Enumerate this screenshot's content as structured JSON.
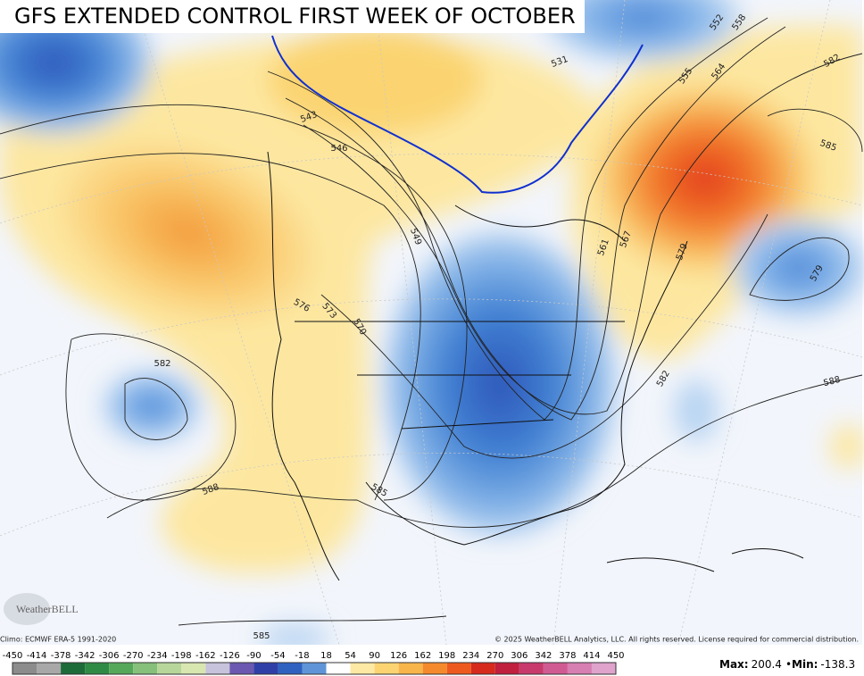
{
  "title": "GFS EXTENDED CONTROL FIRST WEEK OF OCTOBER",
  "contour_labels": [
    "531",
    "552",
    "558",
    "555",
    "564",
    "582",
    "585",
    "543",
    "546",
    "549",
    "561",
    "567",
    "579",
    "579",
    "576",
    "573",
    "570",
    "582",
    "582",
    "588",
    "588",
    "585",
    "585"
  ],
  "logo": "WeatherBELL",
  "climo": "Climo: ECMWF ERA-5 1991-2020",
  "copyright": "© 2025 WeatherBELL Analytics, LLC. All rights reserved. License required for commercial distribution.",
  "colorbar": {
    "ticks": [
      -450,
      -414,
      -378,
      -342,
      -306,
      -270,
      -234,
      -198,
      -162,
      -126,
      -90,
      -54,
      -18,
      18,
      54,
      90,
      126,
      162,
      198,
      234,
      270,
      306,
      342,
      378,
      414,
      450
    ],
    "colors": [
      "#8c8c8c",
      "#a8a8a8",
      "#1e6b3a",
      "#2f8a45",
      "#55a85a",
      "#86c07a",
      "#b7d79a",
      "#d8e6b0",
      "#c7c3dc",
      "#6b58b0",
      "#2f3fa8",
      "#2f62c0",
      "#5f95d8",
      "#ffffff",
      "#fde9a3",
      "#fbd471",
      "#f8b54a",
      "#f58a2d",
      "#ee5a1d",
      "#d62a1c",
      "#c01f3e",
      "#c83a6c",
      "#d05b93",
      "#d77eb2",
      "#dfa3cc"
    ]
  },
  "stats": [
    {
      "label": "Max:",
      "value": 200.4
    },
    {
      "label": "Min:",
      "value": -138.3
    }
  ],
  "stats_separator": "•"
}
